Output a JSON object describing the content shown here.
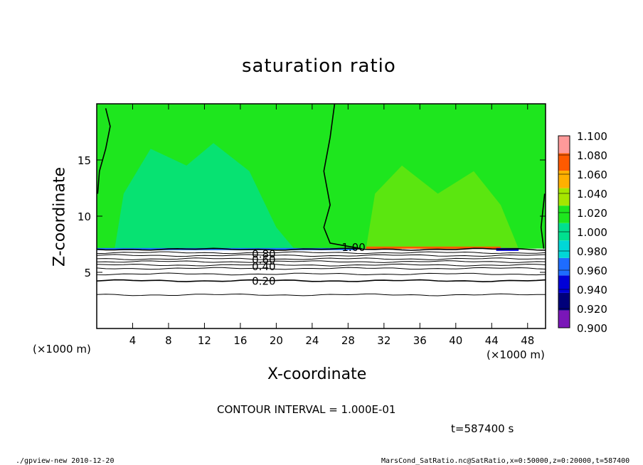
{
  "chart_data": {
    "type": "heatmap",
    "title": "saturation ratio",
    "xlabel": "X-coordinate",
    "ylabel": "Z-coordinate",
    "x_unit_label": "(×1000 m)",
    "x_unit_label_right": "(×1000 m)",
    "xlim": [
      0,
      50
    ],
    "ylim": [
      0,
      20
    ],
    "x_ticks": [
      4,
      8,
      12,
      16,
      20,
      24,
      28,
      32,
      36,
      40,
      44,
      48
    ],
    "y_ticks": [
      5,
      10,
      15
    ],
    "colorbar": {
      "levels": [
        "0.900",
        "0.920",
        "0.940",
        "0.960",
        "0.980",
        "1.000",
        "1.020",
        "1.040",
        "1.060",
        "1.080",
        "1.100"
      ],
      "colors": [
        "#7a16b8",
        "#00007a",
        "#0000d8",
        "#1e6cff",
        "#00d7d7",
        "#00e08f",
        "#1ee61e",
        "#a6e600",
        "#ffb000",
        "#ff5a00",
        "#ff9a9a"
      ]
    },
    "contour_labels": [
      {
        "text": "1.00",
        "x": 27.5,
        "z": 7.2
      },
      {
        "text": "0.80",
        "x": 17.5,
        "z": 6.6
      },
      {
        "text": "0.60",
        "x": 17.5,
        "z": 6.1
      },
      {
        "text": "0.40",
        "x": 17.5,
        "z": 5.5
      },
      {
        "text": "0.20",
        "x": 17.5,
        "z": 4.2
      }
    ],
    "contour_levels_z": [
      7.05,
      6.75,
      6.5,
      6.2,
      5.95,
      5.65,
      5.35,
      4.85,
      4.25,
      3.0
    ],
    "saturated_layer_top_z": 7.1
  },
  "footer": {
    "contour_interval": "CONTOUR INTERVAL = 1.000E-01",
    "time": "t=587400 s",
    "left_info": "./gpview-new  2010-12-20",
    "right_info": "MarsCond_SatRatio.nc@SatRatio,x=0:50000,z=0:20000,t=587400"
  }
}
